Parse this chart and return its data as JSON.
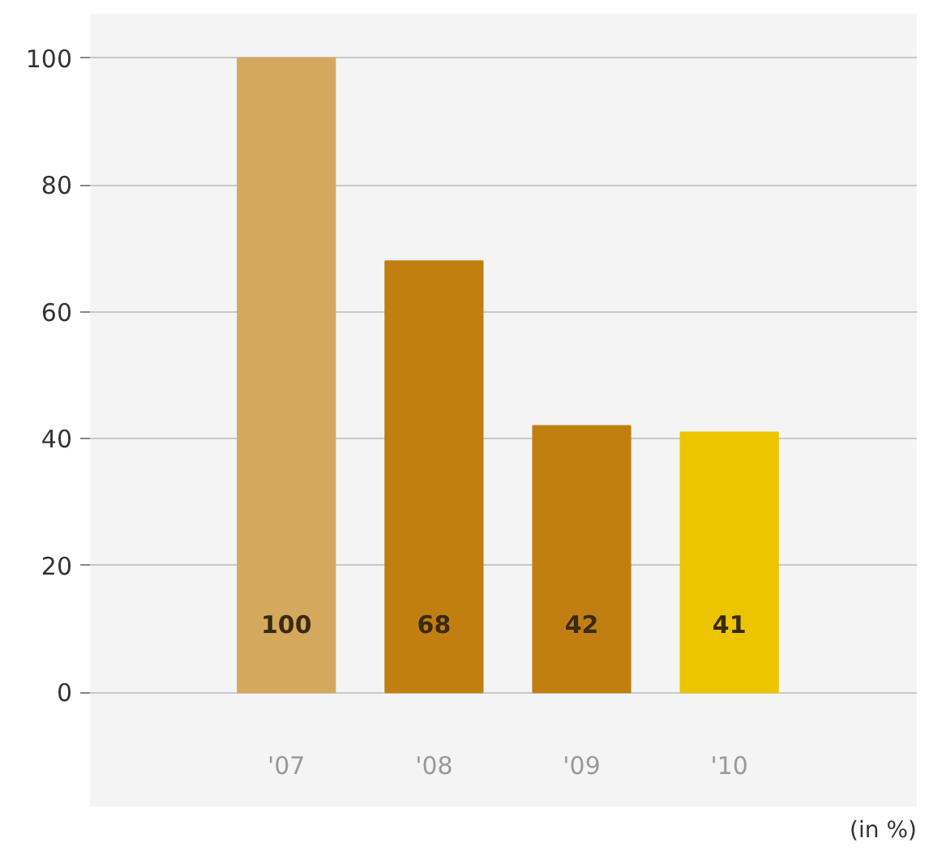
{
  "chart_data": {
    "type": "bar",
    "categories": [
      "'07",
      "'08",
      "'09",
      "'10"
    ],
    "values": [
      100,
      68,
      42,
      41
    ],
    "colors": [
      "#d4a95e",
      "#c17f11",
      "#c17f11",
      "#ecc400"
    ],
    "ylim": [
      -18,
      107
    ],
    "yticks": [
      0,
      20,
      40,
      60,
      80,
      100
    ],
    "grid": "y",
    "data_labels": true,
    "annotations": [
      "(in %)"
    ]
  }
}
